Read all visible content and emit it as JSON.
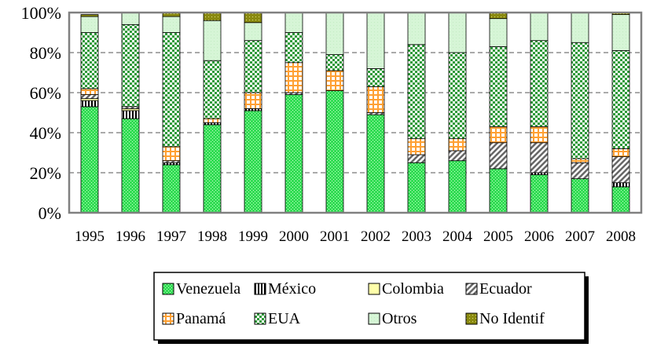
{
  "chart_data": {
    "type": "bar",
    "stacked": true,
    "normalized_percent": true,
    "title": "",
    "xlabel": "",
    "ylabel": "",
    "ylim": [
      0,
      100
    ],
    "yticks": [
      "0%",
      "20%",
      "40%",
      "60%",
      "80%",
      "100%"
    ],
    "grid": true,
    "legend_position": "bottom",
    "categories": [
      "1995",
      "1996",
      "1997",
      "1998",
      "1999",
      "2000",
      "2001",
      "2002",
      "2003",
      "2004",
      "2005",
      "2006",
      "2007",
      "2008"
    ],
    "series": [
      {
        "name": "Venezuela",
        "color": "#33cc66",
        "pattern": "check-green",
        "values": [
          53,
          47,
          24,
          44,
          51,
          59,
          61,
          49,
          25,
          26,
          22,
          19,
          17,
          13
        ]
      },
      {
        "name": "México",
        "color": "#000000",
        "pattern": "vertical-black",
        "values": [
          3,
          4,
          1,
          1,
          1,
          0,
          0,
          0,
          0,
          0,
          0,
          1,
          0,
          2
        ]
      },
      {
        "name": "Colombia",
        "color": "#ffff99",
        "pattern": "solid-yellow",
        "values": [
          1,
          1,
          0,
          0,
          0,
          0,
          0,
          0,
          0,
          0,
          0,
          0,
          0,
          0
        ]
      },
      {
        "name": "Ecuador",
        "color": "#999999",
        "pattern": "diagonal-gray",
        "values": [
          2,
          1,
          1,
          0,
          0,
          1,
          0,
          1,
          4,
          5,
          13,
          15,
          8,
          13
        ]
      },
      {
        "name": "Panamá",
        "color": "#ffaa33",
        "pattern": "grid-orange",
        "values": [
          3,
          0,
          7,
          2,
          8,
          15,
          10,
          13,
          8,
          6,
          8,
          8,
          2,
          4
        ]
      },
      {
        "name": "EUA",
        "color": "#339933",
        "pattern": "checker-green",
        "values": [
          28,
          41,
          57,
          29,
          26,
          15,
          8,
          9,
          47,
          43,
          40,
          43,
          58,
          49
        ]
      },
      {
        "name": "Otros",
        "color": "#ccffcc",
        "pattern": "light-green",
        "values": [
          8,
          6,
          8,
          20,
          9,
          10,
          21,
          28,
          16,
          20,
          14,
          14,
          15,
          18
        ]
      },
      {
        "name": "No Identif",
        "color": "#808000",
        "pattern": "dots-olive",
        "values": [
          1,
          0,
          2,
          4,
          5,
          0,
          0,
          0,
          0,
          0,
          3,
          0,
          0,
          1
        ]
      }
    ]
  },
  "legend": {
    "items": [
      "Venezuela",
      "México",
      "Colombia",
      "Ecuador",
      "Panamá",
      "EUA",
      "Otros",
      "No Identif"
    ]
  }
}
